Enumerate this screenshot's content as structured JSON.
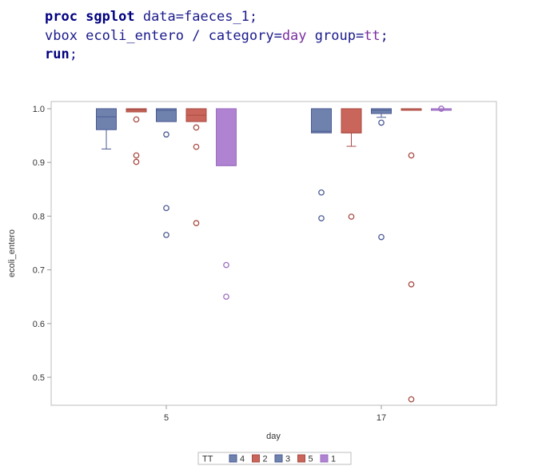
{
  "code": {
    "line1": {
      "kw": "proc sgplot",
      "rest_a": " data=",
      "val": "faeces_1",
      "rest_b": ";"
    },
    "line2": {
      "pre": "vbox ecoli_entero / category=",
      "val1": "day",
      "mid": " group=",
      "val2": "tt",
      "post": ";"
    },
    "line3": {
      "kw": "run",
      "post": ";"
    }
  },
  "chart_data": {
    "type": "box",
    "title": "",
    "xlabel": "day",
    "ylabel": "ecoli_entero",
    "categories": [
      "5",
      "17"
    ],
    "yticks": [
      "0.5",
      "0.6",
      "0.7",
      "0.8",
      "0.9",
      "1.0"
    ],
    "ylim": [
      0.45,
      1.01
    ],
    "legend": {
      "title": "TT",
      "placement": "bottom",
      "entries": [
        "4",
        "2",
        "3",
        "5",
        "1"
      ]
    },
    "groups": [
      {
        "name": "4",
        "color": "#6f82ad",
        "stroke": "#4b5a95"
      },
      {
        "name": "2",
        "color": "#c9655a",
        "stroke": "#a84c44"
      },
      {
        "name": "3",
        "color": "#6f82ad",
        "stroke": "#4b5a95"
      },
      {
        "name": "5",
        "color": "#c9655a",
        "stroke": "#a84c44"
      },
      {
        "name": "1",
        "color": "#b083d2",
        "stroke": "#9a6cc0"
      }
    ],
    "boxes": [
      {
        "category": "5",
        "group": "4",
        "q1": 0.961,
        "median": 0.985,
        "q3": 1.0,
        "whisker_low": 0.925,
        "whisker_high": 1.0,
        "outliers": []
      },
      {
        "category": "5",
        "group": "2",
        "q1": 0.994,
        "median": 0.998,
        "q3": 1.0,
        "whisker_low": 0.994,
        "whisker_high": 1.0,
        "outliers": [
          0.98,
          0.913,
          0.901
        ]
      },
      {
        "category": "5",
        "group": "3",
        "q1": 0.976,
        "median": 0.997,
        "q3": 1.0,
        "whisker_low": 0.976,
        "whisker_high": 1.0,
        "outliers": [
          0.952,
          0.815,
          0.765
        ]
      },
      {
        "category": "5",
        "group": "5",
        "q1": 0.976,
        "median": 0.988,
        "q3": 1.0,
        "whisker_low": 0.976,
        "whisker_high": 1.0,
        "outliers": [
          0.965,
          0.929,
          0.787
        ]
      },
      {
        "category": "5",
        "group": "1",
        "q1": 0.894,
        "median": 0.894,
        "q3": 1.0,
        "whisker_low": 0.894,
        "whisker_high": 1.0,
        "outliers": [
          0.709,
          0.65
        ]
      },
      {
        "category": "17",
        "group": "4",
        "q1": 0.955,
        "median": 0.958,
        "q3": 1.0,
        "whisker_low": 0.955,
        "whisker_high": 1.0,
        "outliers": [
          0.844,
          0.796
        ]
      },
      {
        "category": "17",
        "group": "2",
        "q1": 0.955,
        "median": 0.955,
        "q3": 1.0,
        "whisker_low": 0.93,
        "whisker_high": 1.0,
        "outliers": [
          0.799
        ]
      },
      {
        "category": "17",
        "group": "3",
        "q1": 0.991,
        "median": 0.997,
        "q3": 1.0,
        "whisker_low": 0.984,
        "whisker_high": 1.0,
        "outliers": [
          0.974,
          0.761
        ]
      },
      {
        "category": "17",
        "group": "5",
        "q1": 0.999,
        "median": 1.0,
        "q3": 1.0,
        "whisker_low": 0.999,
        "whisker_high": 1.0,
        "outliers": [
          0.913,
          0.673,
          0.459
        ]
      },
      {
        "category": "17",
        "group": "1",
        "q1": 0.999,
        "median": 1.0,
        "q3": 1.0,
        "whisker_low": 0.999,
        "whisker_high": 1.0,
        "outliers": [
          1.0
        ]
      }
    ]
  }
}
